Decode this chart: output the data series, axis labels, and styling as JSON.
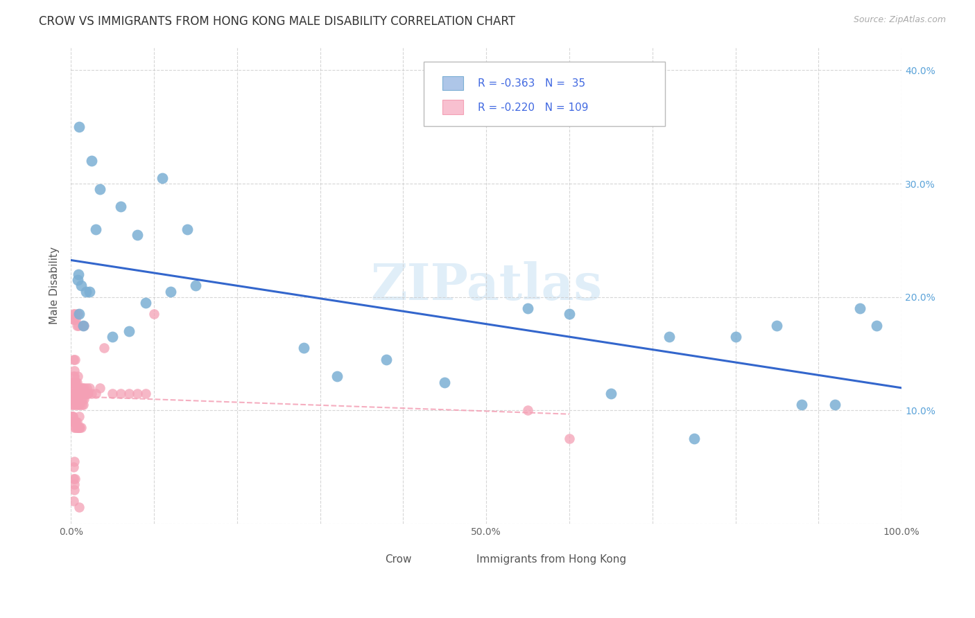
{
  "title": "CROW VS IMMIGRANTS FROM HONG KONG MALE DISABILITY CORRELATION CHART",
  "source": "Source: ZipAtlas.com",
  "ylabel": "Male Disability",
  "xlim": [
    0,
    1.0
  ],
  "ylim": [
    0,
    0.42
  ],
  "grid_color": "#cccccc",
  "background_color": "#ffffff",
  "color1": "#7bafd4",
  "color2": "#f4a0b5",
  "trendline1_color": "#3366cc",
  "trendline2_color": "#f4a0b5",
  "tick_color": "#5ba3d9",
  "label1": "Crow",
  "label2": "Immigrants from Hong Kong",
  "crow_x": [
    0.008,
    0.01,
    0.012,
    0.015,
    0.018,
    0.022,
    0.009,
    0.05,
    0.07,
    0.09,
    0.12,
    0.14,
    0.11,
    0.08,
    0.06,
    0.03,
    0.035,
    0.15,
    0.28,
    0.32,
    0.38,
    0.45,
    0.55,
    0.6,
    0.65,
    0.72,
    0.75,
    0.8,
    0.85,
    0.88,
    0.92,
    0.95,
    0.97,
    0.01,
    0.025
  ],
  "crow_y": [
    0.215,
    0.185,
    0.21,
    0.175,
    0.205,
    0.205,
    0.22,
    0.165,
    0.17,
    0.195,
    0.205,
    0.26,
    0.305,
    0.255,
    0.28,
    0.26,
    0.295,
    0.21,
    0.155,
    0.13,
    0.145,
    0.125,
    0.19,
    0.185,
    0.115,
    0.165,
    0.075,
    0.165,
    0.175,
    0.105,
    0.105,
    0.19,
    0.175,
    0.35,
    0.32
  ],
  "hk_x": [
    0.001,
    0.001,
    0.002,
    0.002,
    0.002,
    0.003,
    0.003,
    0.003,
    0.003,
    0.004,
    0.004,
    0.004,
    0.004,
    0.005,
    0.005,
    0.005,
    0.005,
    0.006,
    0.006,
    0.006,
    0.007,
    0.007,
    0.007,
    0.008,
    0.008,
    0.009,
    0.009,
    0.01,
    0.01,
    0.011,
    0.011,
    0.012,
    0.012,
    0.013,
    0.013,
    0.014,
    0.014,
    0.015,
    0.015,
    0.016,
    0.016,
    0.017,
    0.018,
    0.019,
    0.02,
    0.021,
    0.022,
    0.025,
    0.03,
    0.035,
    0.04,
    0.05,
    0.06,
    0.07,
    0.08,
    0.09,
    0.1,
    0.002,
    0.003,
    0.004,
    0.005,
    0.006,
    0.007,
    0.008,
    0.009,
    0.003,
    0.004,
    0.005,
    0.004,
    0.004,
    0.003,
    0.01,
    0.003,
    0.55,
    0.6,
    0.001,
    0.002,
    0.003,
    0.004,
    0.005,
    0.006,
    0.007,
    0.008,
    0.009,
    0.01,
    0.011,
    0.012,
    0.002,
    0.003,
    0.004,
    0.005,
    0.006,
    0.007,
    0.008,
    0.003,
    0.005,
    0.014,
    0.016
  ],
  "hk_y": [
    0.105,
    0.115,
    0.095,
    0.11,
    0.12,
    0.105,
    0.115,
    0.125,
    0.09,
    0.085,
    0.11,
    0.12,
    0.135,
    0.105,
    0.115,
    0.09,
    0.125,
    0.085,
    0.11,
    0.12,
    0.105,
    0.115,
    0.09,
    0.11,
    0.12,
    0.105,
    0.115,
    0.095,
    0.12,
    0.105,
    0.115,
    0.11,
    0.12,
    0.105,
    0.115,
    0.11,
    0.12,
    0.105,
    0.115,
    0.11,
    0.12,
    0.115,
    0.115,
    0.12,
    0.115,
    0.115,
    0.12,
    0.115,
    0.115,
    0.12,
    0.155,
    0.115,
    0.115,
    0.115,
    0.115,
    0.115,
    0.185,
    0.18,
    0.185,
    0.18,
    0.185,
    0.18,
    0.175,
    0.185,
    0.175,
    0.04,
    0.035,
    0.04,
    0.03,
    0.055,
    0.05,
    0.015,
    0.02,
    0.1,
    0.075,
    0.095,
    0.095,
    0.09,
    0.09,
    0.09,
    0.09,
    0.085,
    0.085,
    0.085,
    0.085,
    0.085,
    0.085,
    0.125,
    0.13,
    0.13,
    0.125,
    0.125,
    0.125,
    0.13,
    0.145,
    0.145,
    0.175,
    0.175
  ]
}
